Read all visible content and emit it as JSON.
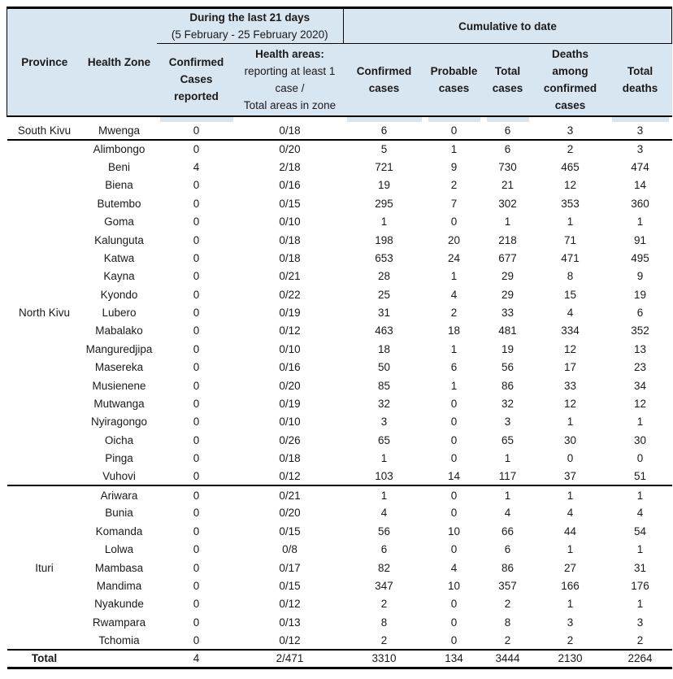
{
  "colors": {
    "header_bg": "#d8e6f2",
    "rule": "#000000",
    "text": "#1a1a1a"
  },
  "table": {
    "header": {
      "province": "Province",
      "health_zone": "Health Zone",
      "during_title": "During the last 21 days",
      "during_subtitle": "(5 February - 25 February 2020)",
      "cumulative_title": "Cumulative to date",
      "confirmed_reported": "Confirmed Cases reported",
      "health_areas_title": "Health areas:",
      "health_areas_line2": "reporting at least 1 case /",
      "health_areas_line3": "Total areas in zone",
      "confirmed_cases": "Confirmed cases",
      "probable_cases": "Probable cases",
      "total_cases": "Total cases",
      "deaths_among_confirmed": "Deaths among confirmed cases",
      "total_deaths": "Total deaths"
    },
    "columns_order": [
      "confirmed_reported",
      "health_areas",
      "confirmed_cases",
      "probable_cases",
      "total_cases",
      "deaths_among_confirmed",
      "total_deaths"
    ],
    "groups": [
      {
        "province": "South Kivu",
        "zones": [
          {
            "name": "Mwenga",
            "values": [
              "0",
              "0/18",
              "6",
              "0",
              "6",
              "3",
              "3"
            ]
          }
        ]
      },
      {
        "province": "North Kivu",
        "zones": [
          {
            "name": "Alimbongo",
            "values": [
              "0",
              "0/20",
              "5",
              "1",
              "6",
              "2",
              "3"
            ]
          },
          {
            "name": "Beni",
            "values": [
              "4",
              "2/18",
              "721",
              "9",
              "730",
              "465",
              "474"
            ]
          },
          {
            "name": "Biena",
            "values": [
              "0",
              "0/16",
              "19",
              "2",
              "21",
              "12",
              "14"
            ]
          },
          {
            "name": "Butembo",
            "values": [
              "0",
              "0/15",
              "295",
              "7",
              "302",
              "353",
              "360"
            ]
          },
          {
            "name": "Goma",
            "values": [
              "0",
              "0/10",
              "1",
              "0",
              "1",
              "1",
              "1"
            ]
          },
          {
            "name": "Kalunguta",
            "values": [
              "0",
              "0/18",
              "198",
              "20",
              "218",
              "71",
              "91"
            ]
          },
          {
            "name": "Katwa",
            "values": [
              "0",
              "0/18",
              "653",
              "24",
              "677",
              "471",
              "495"
            ]
          },
          {
            "name": "Kayna",
            "values": [
              "0",
              "0/21",
              "28",
              "1",
              "29",
              "8",
              "9"
            ]
          },
          {
            "name": "Kyondo",
            "values": [
              "0",
              "0/22",
              "25",
              "4",
              "29",
              "15",
              "19"
            ]
          },
          {
            "name": "Lubero",
            "values": [
              "0",
              "0/19",
              "31",
              "2",
              "33",
              "4",
              "6"
            ]
          },
          {
            "name": "Mabalako",
            "values": [
              "0",
              "0/12",
              "463",
              "18",
              "481",
              "334",
              "352"
            ]
          },
          {
            "name": "Manguredjipa",
            "values": [
              "0",
              "0/10",
              "18",
              "1",
              "19",
              "12",
              "13"
            ]
          },
          {
            "name": "Masereka",
            "values": [
              "0",
              "0/16",
              "50",
              "6",
              "56",
              "17",
              "23"
            ]
          },
          {
            "name": "Musienene",
            "values": [
              "0",
              "0/20",
              "85",
              "1",
              "86",
              "33",
              "34"
            ]
          },
          {
            "name": "Mutwanga",
            "values": [
              "0",
              "0/19",
              "32",
              "0",
              "32",
              "12",
              "12"
            ]
          },
          {
            "name": "Nyiragongo",
            "values": [
              "0",
              "0/10",
              "3",
              "0",
              "3",
              "1",
              "1"
            ]
          },
          {
            "name": "Oicha",
            "values": [
              "0",
              "0/26",
              "65",
              "0",
              "65",
              "30",
              "30"
            ]
          },
          {
            "name": "Pinga",
            "values": [
              "0",
              "0/18",
              "1",
              "0",
              "1",
              "0",
              "0"
            ]
          },
          {
            "name": "Vuhovi",
            "values": [
              "0",
              "0/12",
              "103",
              "14",
              "117",
              "37",
              "51"
            ]
          }
        ]
      },
      {
        "province": "Ituri",
        "zones": [
          {
            "name": "Ariwara",
            "values": [
              "0",
              "0/21",
              "1",
              "0",
              "1",
              "1",
              "1"
            ]
          },
          {
            "name": "Bunia",
            "values": [
              "0",
              "0/20",
              "4",
              "0",
              "4",
              "4",
              "4"
            ]
          },
          {
            "name": "Komanda",
            "values": [
              "0",
              "0/15",
              "56",
              "10",
              "66",
              "44",
              "54"
            ]
          },
          {
            "name": "Lolwa",
            "values": [
              "0",
              "0/8",
              "6",
              "0",
              "6",
              "1",
              "1"
            ]
          },
          {
            "name": "Mambasa",
            "values": [
              "0",
              "0/17",
              "82",
              "4",
              "86",
              "27",
              "31"
            ]
          },
          {
            "name": "Mandima",
            "values": [
              "0",
              "0/15",
              "347",
              "10",
              "357",
              "166",
              "176"
            ]
          },
          {
            "name": "Nyakunde",
            "values": [
              "0",
              "0/12",
              "2",
              "0",
              "2",
              "1",
              "1"
            ]
          },
          {
            "name": "Rwampara",
            "values": [
              "0",
              "0/13",
              "8",
              "0",
              "8",
              "3",
              "3"
            ]
          },
          {
            "name": "Tchomia",
            "values": [
              "0",
              "0/12",
              "2",
              "0",
              "2",
              "2",
              "2"
            ]
          }
        ]
      }
    ],
    "total": {
      "label": "Total",
      "values": [
        "4",
        "2/471",
        "3310",
        "134",
        "3444",
        "2130",
        "2264"
      ]
    }
  }
}
